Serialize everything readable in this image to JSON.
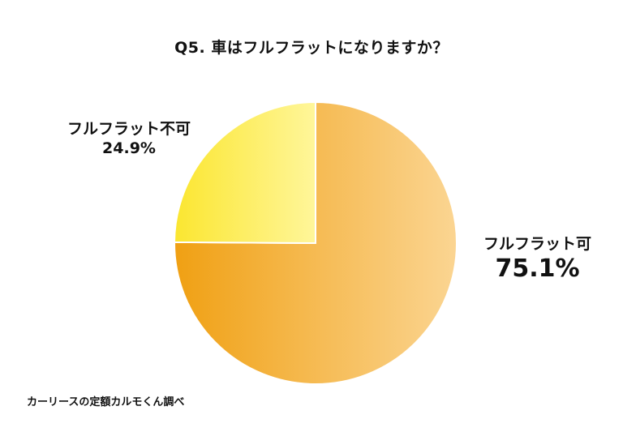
{
  "chart_data": {
    "type": "pie",
    "title": "Q5. 車はフルフラットになりますか？",
    "slices": [
      {
        "label": "フルフラット可",
        "value": 75.1,
        "value_label": "75.1%",
        "color_light": "#fbd592",
        "color_dark": "#f0a013"
      },
      {
        "label": "フルフラット不可",
        "value": 24.9,
        "value_label": "24.9%",
        "color_light": "#fff69a",
        "color_dark": "#fbe630"
      }
    ],
    "start_angle": "12 o'clock",
    "direction": "clockwise"
  },
  "source": "カーリースの定額カルモくん調べ"
}
